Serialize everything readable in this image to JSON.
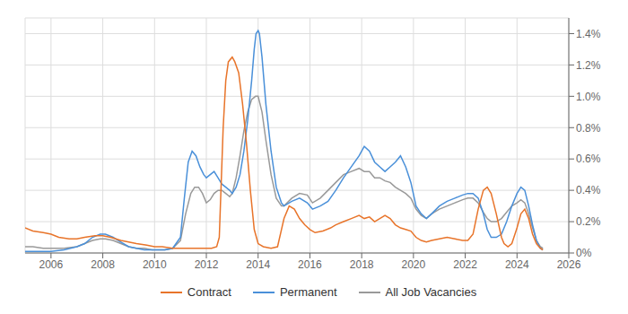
{
  "chart_data": {
    "type": "line",
    "xlim": [
      2005.0,
      2026.0
    ],
    "xticks": [
      2006,
      2008,
      2010,
      2012,
      2014,
      2016,
      2018,
      2020,
      2022,
      2024,
      2026
    ],
    "ylim": [
      0.0,
      0.015
    ],
    "yticks": [
      {
        "value": 0.0,
        "label": "0%"
      },
      {
        "value": 0.002,
        "label": "0.2%"
      },
      {
        "value": 0.004,
        "label": "0.4%"
      },
      {
        "value": 0.006,
        "label": "0.6%"
      },
      {
        "value": 0.008,
        "label": "0.8%"
      },
      {
        "value": 0.01,
        "label": "1.0%"
      },
      {
        "value": 0.012,
        "label": "1.2%"
      },
      {
        "value": 0.014,
        "label": "1.4%"
      }
    ],
    "grid": true,
    "legend": "bottom",
    "series": [
      {
        "name": "Contract",
        "color": "#E8742A",
        "x": [
          2005.0,
          2005.3,
          2005.7,
          2006.0,
          2006.3,
          2006.7,
          2007.0,
          2007.3,
          2007.7,
          2008.0,
          2008.3,
          2008.7,
          2009.0,
          2009.3,
          2009.7,
          2010.0,
          2010.3,
          2010.7,
          2011.0,
          2011.3,
          2011.7,
          2012.0,
          2012.2,
          2012.4,
          2012.5,
          2012.65,
          2012.75,
          2012.85,
          2013.0,
          2013.1,
          2013.25,
          2013.4,
          2013.55,
          2013.7,
          2013.85,
          2014.0,
          2014.2,
          2014.5,
          2014.75,
          2015.0,
          2015.2,
          2015.4,
          2015.6,
          2015.8,
          2016.0,
          2016.2,
          2016.5,
          2016.8,
          2017.0,
          2017.3,
          2017.6,
          2017.9,
          2018.1,
          2018.3,
          2018.5,
          2018.7,
          2018.9,
          2019.1,
          2019.3,
          2019.5,
          2019.7,
          2019.9,
          2020.1,
          2020.3,
          2020.5,
          2020.7,
          2021.0,
          2021.3,
          2021.6,
          2021.9,
          2022.1,
          2022.3,
          2022.5,
          2022.7,
          2022.85,
          2023.0,
          2023.2,
          2023.4,
          2023.5,
          2023.65,
          2023.8,
          2024.0,
          2024.15,
          2024.3,
          2024.45,
          2024.6,
          2024.75,
          2024.9,
          2025.0
        ],
        "values": [
          0.0016,
          0.0014,
          0.0013,
          0.0012,
          0.001,
          0.0009,
          0.0009,
          0.001,
          0.0011,
          0.0011,
          0.001,
          0.0008,
          0.0007,
          0.0006,
          0.0005,
          0.0004,
          0.0004,
          0.0003,
          0.0003,
          0.0003,
          0.0003,
          0.0003,
          0.0003,
          0.0004,
          0.001,
          0.008,
          0.011,
          0.0122,
          0.0125,
          0.0122,
          0.0115,
          0.0095,
          0.007,
          0.004,
          0.0015,
          0.0006,
          0.0004,
          0.0003,
          0.0004,
          0.0022,
          0.003,
          0.0028,
          0.0022,
          0.0018,
          0.0015,
          0.0013,
          0.0014,
          0.0016,
          0.0018,
          0.002,
          0.0022,
          0.0024,
          0.0022,
          0.0023,
          0.002,
          0.0022,
          0.0024,
          0.0022,
          0.0018,
          0.0016,
          0.0015,
          0.0014,
          0.001,
          0.0008,
          0.0007,
          0.0008,
          0.0009,
          0.001,
          0.0009,
          0.0008,
          0.0008,
          0.0012,
          0.0028,
          0.004,
          0.0042,
          0.0038,
          0.0025,
          0.001,
          0.0006,
          0.0004,
          0.0006,
          0.0016,
          0.0025,
          0.0028,
          0.0022,
          0.0012,
          0.0006,
          0.0003,
          0.0002
        ]
      },
      {
        "name": "Permanent",
        "color": "#4A90D9",
        "x": [
          2005.0,
          2005.3,
          2005.7,
          2006.0,
          2006.5,
          2007.0,
          2007.3,
          2007.6,
          2007.9,
          2008.1,
          2008.4,
          2008.7,
          2009.0,
          2009.3,
          2009.6,
          2009.9,
          2010.1,
          2010.4,
          2010.7,
          2011.0,
          2011.15,
          2011.3,
          2011.45,
          2011.6,
          2011.75,
          2011.9,
          2012.0,
          2012.15,
          2012.3,
          2012.45,
          2012.6,
          2012.75,
          2012.9,
          2013.0,
          2013.15,
          2013.3,
          2013.45,
          2013.6,
          2013.75,
          2013.85,
          2013.92,
          2014.0,
          2014.05,
          2014.15,
          2014.3,
          2014.5,
          2014.7,
          2014.9,
          2015.0,
          2015.3,
          2015.6,
          2015.9,
          2016.1,
          2016.4,
          2016.7,
          2017.0,
          2017.3,
          2017.6,
          2017.9,
          2018.1,
          2018.3,
          2018.5,
          2018.7,
          2018.9,
          2019.1,
          2019.3,
          2019.5,
          2019.7,
          2019.9,
          2020.1,
          2020.3,
          2020.5,
          2020.7,
          2021.0,
          2021.3,
          2021.6,
          2021.9,
          2022.1,
          2022.3,
          2022.5,
          2022.7,
          2022.85,
          2023.0,
          2023.2,
          2023.4,
          2023.6,
          2023.8,
          2024.0,
          2024.15,
          2024.3,
          2024.45,
          2024.6,
          2024.75,
          2024.9,
          2025.0
        ],
        "values": [
          0.0001,
          0.0001,
          0.0001,
          0.0001,
          0.0002,
          0.0004,
          0.0006,
          0.001,
          0.0012,
          0.0012,
          0.001,
          0.0007,
          0.0004,
          0.0003,
          0.0002,
          0.0002,
          0.0002,
          0.0002,
          0.0003,
          0.001,
          0.0035,
          0.0058,
          0.0065,
          0.0062,
          0.0055,
          0.005,
          0.0048,
          0.005,
          0.0052,
          0.0048,
          0.0044,
          0.0042,
          0.004,
          0.0038,
          0.0042,
          0.005,
          0.0065,
          0.0085,
          0.011,
          0.013,
          0.014,
          0.0142,
          0.014,
          0.0125,
          0.0095,
          0.0065,
          0.0042,
          0.0032,
          0.003,
          0.0033,
          0.0035,
          0.0032,
          0.0028,
          0.003,
          0.0033,
          0.004,
          0.0048,
          0.0055,
          0.0062,
          0.0068,
          0.0065,
          0.0058,
          0.0055,
          0.0052,
          0.0055,
          0.0058,
          0.0062,
          0.0055,
          0.0045,
          0.003,
          0.0025,
          0.0022,
          0.0025,
          0.003,
          0.0033,
          0.0035,
          0.0037,
          0.0038,
          0.0038,
          0.0035,
          0.0025,
          0.0015,
          0.001,
          0.001,
          0.0012,
          0.002,
          0.003,
          0.0038,
          0.0042,
          0.004,
          0.003,
          0.0018,
          0.0008,
          0.0003,
          0.0002
        ]
      },
      {
        "name": "All Job Vacancies",
        "color": "#999999",
        "x": [
          2005.0,
          2005.3,
          2005.7,
          2006.0,
          2006.5,
          2007.0,
          2007.3,
          2007.6,
          2007.9,
          2008.1,
          2008.4,
          2008.7,
          2009.0,
          2009.3,
          2009.6,
          2009.9,
          2010.1,
          2010.4,
          2010.7,
          2011.0,
          2011.2,
          2011.4,
          2011.55,
          2011.7,
          2011.85,
          2012.0,
          2012.15,
          2012.3,
          2012.45,
          2012.6,
          2012.75,
          2012.9,
          2013.0,
          2013.15,
          2013.3,
          2013.45,
          2013.6,
          2013.75,
          2013.9,
          2014.0,
          2014.15,
          2014.3,
          2014.5,
          2014.7,
          2014.9,
          2015.0,
          2015.3,
          2015.6,
          2015.9,
          2016.1,
          2016.4,
          2016.7,
          2017.0,
          2017.3,
          2017.6,
          2017.9,
          2018.1,
          2018.3,
          2018.5,
          2018.7,
          2018.9,
          2019.1,
          2019.3,
          2019.5,
          2019.7,
          2019.9,
          2020.1,
          2020.3,
          2020.5,
          2020.7,
          2021.0,
          2021.3,
          2021.6,
          2021.9,
          2022.1,
          2022.3,
          2022.5,
          2022.7,
          2022.85,
          2023.0,
          2023.2,
          2023.4,
          2023.6,
          2023.8,
          2024.0,
          2024.15,
          2024.3,
          2024.45,
          2024.6,
          2024.75,
          2024.9,
          2025.0
        ],
        "values": [
          0.0004,
          0.0004,
          0.0003,
          0.0003,
          0.0003,
          0.0004,
          0.0006,
          0.0008,
          0.0009,
          0.0009,
          0.0008,
          0.0006,
          0.0004,
          0.0003,
          0.0003,
          0.0002,
          0.0002,
          0.0002,
          0.0003,
          0.0008,
          0.0025,
          0.0038,
          0.0042,
          0.0042,
          0.0038,
          0.0032,
          0.0034,
          0.0038,
          0.004,
          0.004,
          0.0038,
          0.0036,
          0.0038,
          0.0048,
          0.0062,
          0.0078,
          0.009,
          0.0098,
          0.01,
          0.01,
          0.009,
          0.0072,
          0.005,
          0.0035,
          0.003,
          0.003,
          0.0035,
          0.0038,
          0.0037,
          0.0032,
          0.0035,
          0.004,
          0.0045,
          0.005,
          0.0052,
          0.0054,
          0.0052,
          0.0052,
          0.0048,
          0.0048,
          0.0046,
          0.0045,
          0.0042,
          0.004,
          0.0038,
          0.0035,
          0.0028,
          0.0024,
          0.0022,
          0.0025,
          0.0028,
          0.003,
          0.0032,
          0.0034,
          0.0035,
          0.0035,
          0.0032,
          0.0026,
          0.0022,
          0.002,
          0.002,
          0.0022,
          0.0026,
          0.003,
          0.0032,
          0.0034,
          0.0032,
          0.0025,
          0.0016,
          0.0008,
          0.0004,
          0.0003
        ]
      }
    ]
  }
}
